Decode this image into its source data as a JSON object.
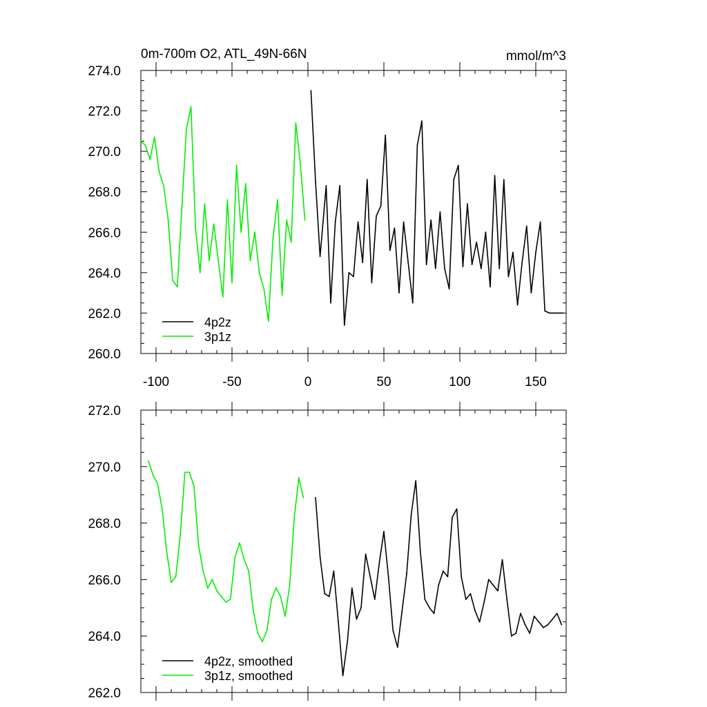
{
  "chart_data": [
    {
      "type": "line",
      "title": "0m-700m O2, ATL_49N-66N",
      "units": "mmol/m^3",
      "xlim": [
        -110,
        170
      ],
      "ylim": [
        260,
        274
      ],
      "xticks": [
        -100,
        -50,
        0,
        50,
        100,
        150
      ],
      "xtick_labels": [
        "-100",
        "-50",
        "0",
        "50",
        "100",
        "150"
      ],
      "yticks": [
        260,
        262,
        264,
        266,
        268,
        270,
        272,
        274
      ],
      "ytick_labels": [
        "260.0",
        "262.0",
        "264.0",
        "266.0",
        "268.0",
        "270.0",
        "272.0",
        "274.0"
      ],
      "grid": false,
      "legend": "bottom-left",
      "series": [
        {
          "name": "4p2z",
          "color": "#000000",
          "x": [
            2,
            5,
            8,
            12,
            15,
            18,
            21,
            24,
            27,
            30,
            33,
            36,
            39,
            42,
            45,
            48,
            51,
            54,
            57,
            60,
            63,
            66,
            69,
            72,
            75,
            78,
            81,
            84,
            87,
            90,
            93,
            96,
            99,
            102,
            105,
            108,
            111,
            114,
            117,
            120,
            123,
            126,
            129,
            132,
            135,
            138,
            141,
            144,
            147,
            150,
            153,
            156,
            159,
            162,
            165,
            168
          ],
          "y": [
            273.0,
            268.5,
            264.8,
            268.3,
            262.5,
            266.5,
            268.3,
            261.4,
            264.0,
            263.8,
            266.5,
            264.5,
            268.6,
            263.5,
            266.8,
            267.3,
            270.8,
            265.1,
            266.2,
            263.0,
            266.5,
            264.5,
            262.5,
            270.3,
            271.5,
            264.4,
            266.6,
            264.2,
            267.0,
            264.2,
            263.2,
            268.6,
            269.3,
            264.3,
            267.4,
            264.4,
            265.5,
            264.2,
            266.0,
            263.3,
            268.8,
            264.2,
            268.6,
            263.8,
            265.0,
            262.4,
            264.5,
            266.3,
            263.0,
            265.0,
            266.5,
            262.1,
            262.0,
            262.0,
            262.0,
            262.0
          ]
        },
        {
          "name": "3p1z",
          "color": "#00ee00",
          "x": [
            -110,
            -107,
            -104,
            -101,
            -98,
            -95,
            -92,
            -89,
            -86,
            -83,
            -80,
            -77,
            -74,
            -71,
            -68,
            -65,
            -62,
            -59,
            -56,
            -53,
            -50,
            -47,
            -44,
            -41,
            -38,
            -35,
            -32,
            -29,
            -26,
            -23,
            -20,
            -17,
            -14,
            -11,
            -8,
            -5,
            -2
          ],
          "y": [
            270.5,
            270.3,
            269.6,
            270.7,
            269.0,
            268.3,
            266.6,
            263.6,
            263.3,
            267.2,
            271.1,
            272.2,
            266.2,
            264.0,
            267.4,
            264.6,
            266.4,
            264.6,
            262.8,
            267.6,
            263.5,
            269.3,
            266.0,
            268.4,
            264.6,
            266.0,
            264.0,
            263.2,
            261.6,
            265.7,
            267.6,
            262.9,
            266.6,
            265.5,
            271.4,
            269.4,
            266.6
          ]
        }
      ]
    },
    {
      "type": "line",
      "xlim": [
        -110,
        170
      ],
      "ylim": [
        262,
        272
      ],
      "yticks": [
        262,
        264,
        266,
        268,
        270,
        272
      ],
      "ytick_labels": [
        "262.0",
        "264.0",
        "266.0",
        "268.0",
        "270.0",
        "272.0"
      ],
      "grid": false,
      "legend": "bottom-left",
      "series": [
        {
          "name": "4p2z, smoothed",
          "color": "#000000",
          "x": [
            5,
            8,
            11,
            14,
            17,
            20,
            23,
            26,
            29,
            32,
            35,
            38,
            41,
            44,
            47,
            50,
            53,
            56,
            59,
            62,
            65,
            68,
            71,
            74,
            77,
            80,
            83,
            86,
            89,
            92,
            95,
            98,
            101,
            104,
            107,
            110,
            113,
            116,
            119,
            122,
            125,
            128,
            131,
            134,
            137,
            140,
            143,
            146,
            149,
            152,
            155,
            158,
            161,
            164,
            167
          ],
          "y": [
            268.9,
            266.8,
            265.5,
            265.4,
            266.3,
            264.5,
            262.6,
            263.8,
            265.7,
            264.6,
            265.0,
            266.9,
            266.1,
            265.3,
            266.6,
            267.7,
            266.1,
            264.2,
            263.6,
            264.9,
            266.2,
            268.3,
            269.5,
            267.0,
            265.3,
            265.0,
            264.8,
            265.8,
            266.3,
            266.1,
            268.2,
            268.5,
            266.1,
            265.3,
            265.5,
            264.9,
            264.5,
            265.2,
            266.0,
            265.8,
            265.6,
            266.7,
            265.3,
            264.0,
            264.1,
            264.8,
            264.4,
            264.1,
            264.7,
            264.5,
            264.3,
            264.4,
            264.6,
            264.8,
            264.4
          ]
        },
        {
          "name": "3p1z, smoothed",
          "color": "#00ee00",
          "x": [
            -105,
            -102,
            -99,
            -96,
            -93,
            -90,
            -87,
            -84,
            -81,
            -78,
            -75,
            -72,
            -69,
            -66,
            -63,
            -60,
            -57,
            -54,
            -51,
            -48,
            -45,
            -42,
            -39,
            -36,
            -33,
            -30,
            -27,
            -24,
            -21,
            -18,
            -15,
            -12,
            -9,
            -6,
            -3
          ],
          "y": [
            270.2,
            269.7,
            269.4,
            268.5,
            267.0,
            265.9,
            266.1,
            267.6,
            269.8,
            269.8,
            269.3,
            267.2,
            266.3,
            265.7,
            266.0,
            265.6,
            265.4,
            265.2,
            265.3,
            266.8,
            267.3,
            266.7,
            266.3,
            264.9,
            264.1,
            263.8,
            264.2,
            265.3,
            265.7,
            265.4,
            264.7,
            265.8,
            268.2,
            269.6,
            268.9
          ]
        }
      ]
    }
  ]
}
